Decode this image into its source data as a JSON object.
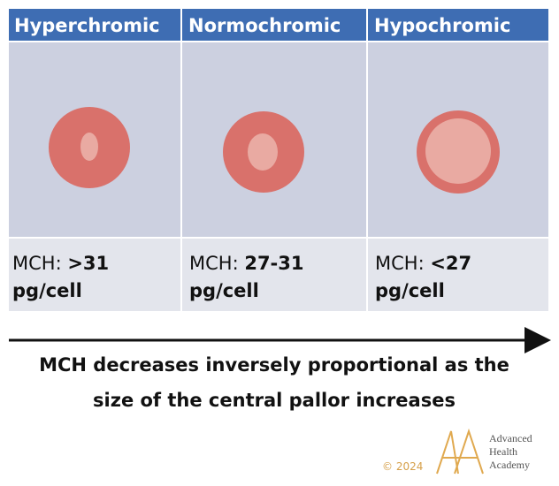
{
  "columns": [
    {
      "header": "Hyperchromic",
      "mch_prefix": "MCH: ",
      "mch_value": ">31",
      "unit": "pg/cell"
    },
    {
      "header": "Normochromic",
      "mch_prefix": "MCH: ",
      "mch_value": "27-31",
      "unit": "pg/cell"
    },
    {
      "header": "Hypochromic",
      "mch_prefix": "MCH: ",
      "mch_value": "<27",
      "unit": "pg/cell"
    }
  ],
  "caption": {
    "line1": "MCH decreases inversely proportional as the",
    "line2": "size of the central pallor increases"
  },
  "footer": {
    "copyright": "© 2024",
    "logo_lines": [
      "Advanced",
      "Health",
      "Academy"
    ]
  }
}
